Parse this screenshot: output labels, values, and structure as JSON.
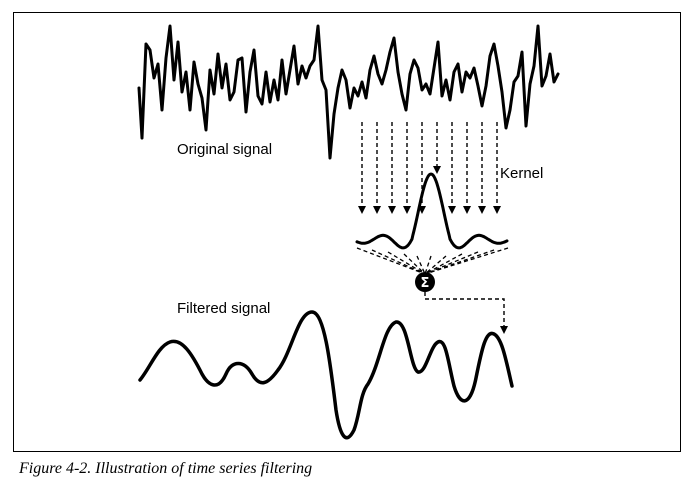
{
  "labels": {
    "original": "Original signal",
    "kernel": "Kernel",
    "filtered": "Filtered signal",
    "sum_symbol": "Σ"
  },
  "caption": "Figure 4-2. Illustration of time series filtering",
  "colors": {
    "ink": "#000000",
    "background": "#ffffff",
    "sum_text": "#ffffff"
  }
}
